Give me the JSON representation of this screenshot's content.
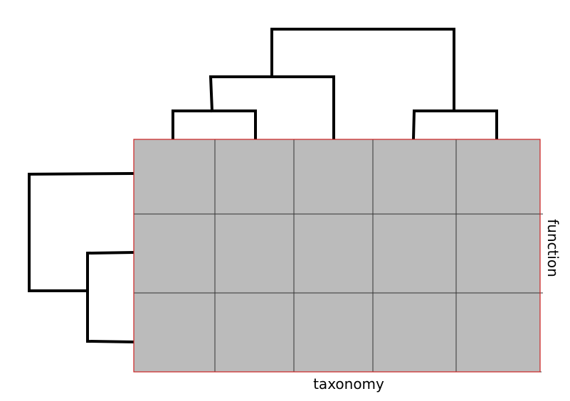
{
  "heatmap": {
    "rows": 3,
    "cols": 5,
    "cell_color": "#bbbbbb",
    "grid_color": "#333333",
    "frame_color": "#cc2222"
  },
  "labels": {
    "x_axis": "taxonomy",
    "y_axis": "function"
  },
  "colors": {
    "dendrogram": "#000000",
    "background": "#ffffff"
  }
}
